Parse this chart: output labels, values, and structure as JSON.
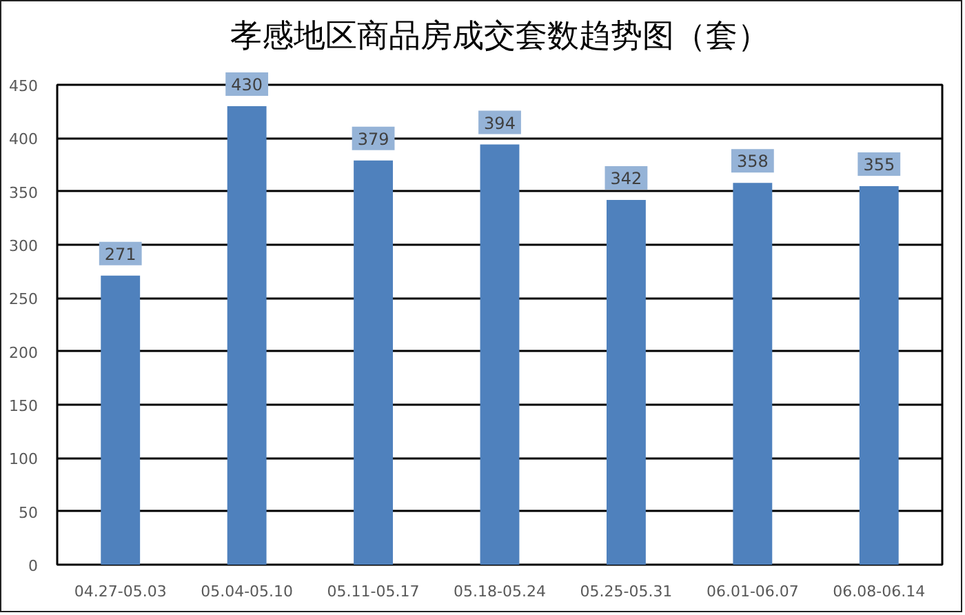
{
  "chart_data": {
    "type": "bar",
    "title": "孝感地区商品房成交套数趋势图（套）",
    "categories": [
      "04.27-05.03",
      "05.04-05.10",
      "05.11-05.17",
      "05.18-05.24",
      "05.25-05.31",
      "06.01-06.07",
      "06.08-06.14"
    ],
    "values": [
      271,
      430,
      379,
      394,
      342,
      358,
      355
    ],
    "color": "#4f81bd",
    "ylim": [
      0,
      450
    ],
    "yticks": [
      0,
      50,
      100,
      150,
      200,
      250,
      300,
      350,
      400,
      450
    ],
    "grid": "y",
    "data_labels": true
  }
}
